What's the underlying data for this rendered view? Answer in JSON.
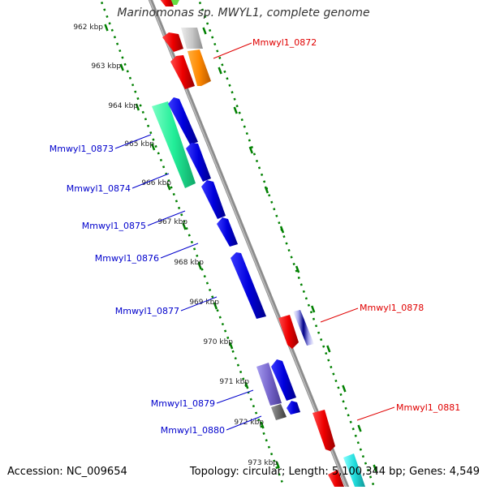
{
  "title": "Marinomonas sp. MWYL1, complete genome",
  "footer": {
    "accession": "Accession: NC_009654",
    "stats": "Topology: circular; Length: 5,100,344 bp; Genes: 4,549"
  },
  "ticks": [
    "962 kbp",
    "963 kbp",
    "964 kbp",
    "965 kbp",
    "966 kbp",
    "967 kbp",
    "968 kbp",
    "969 kbp",
    "970 kbp",
    "971 kbp",
    "972 kbp",
    "973 kbp"
  ],
  "gene_labels": [
    {
      "id": "Mmwyl1_0872",
      "strand": "forward"
    },
    {
      "id": "Mmwyl1_0873",
      "strand": "reverse"
    },
    {
      "id": "Mmwyl1_0874",
      "strand": "reverse"
    },
    {
      "id": "Mmwyl1_0875",
      "strand": "reverse"
    },
    {
      "id": "Mmwyl1_0876",
      "strand": "reverse"
    },
    {
      "id": "Mmwyl1_0877",
      "strand": "reverse"
    },
    {
      "id": "Mmwyl1_0878",
      "strand": "forward"
    },
    {
      "id": "Mmwyl1_0879",
      "strand": "reverse"
    },
    {
      "id": "Mmwyl1_0880",
      "strand": "reverse"
    },
    {
      "id": "Mmwyl1_0881",
      "strand": "forward"
    }
  ],
  "colors": {
    "forward_label": "#e00000",
    "reverse_label": "#0000cc",
    "backbone": "#8c8c8c",
    "ticks": "#008000",
    "blue_gene": "#0000dd",
    "red_gene": "#ee0000",
    "orange_gene": "#ff8800",
    "green_gene": "#22ee99",
    "lavender_gene": "#7766cc",
    "cyan_gene": "#22dddd"
  }
}
